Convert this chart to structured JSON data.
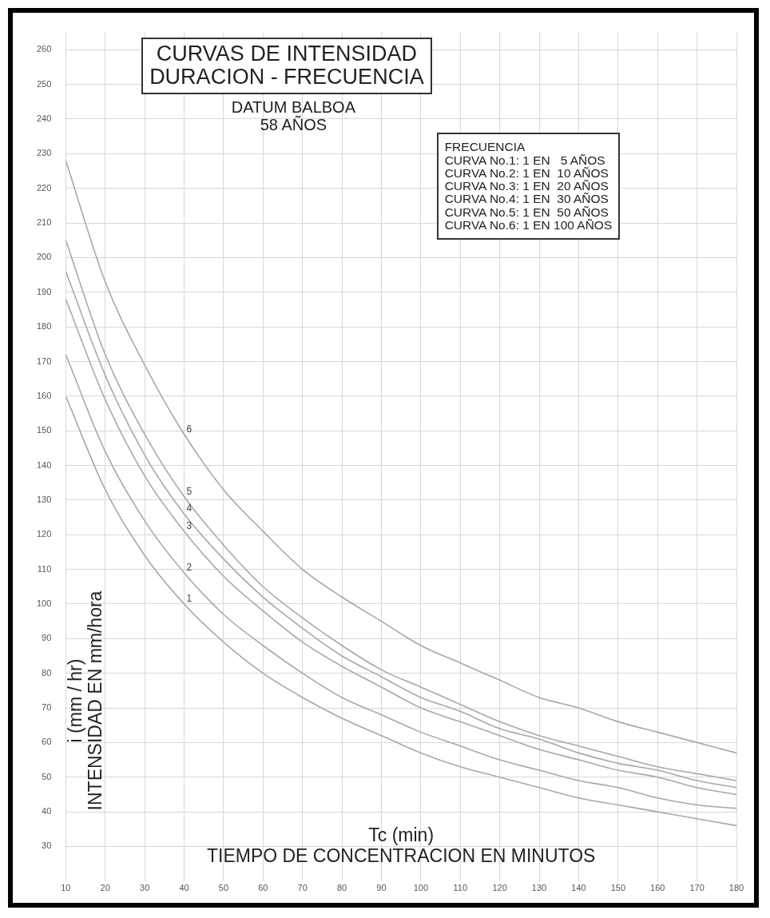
{
  "chart_data": {
    "type": "line",
    "title": "CURVAS DE INTENSIDAD\nDURACION - FRECUENCIA",
    "subtitle": "DATUM BALBOA\n58 AÑOS",
    "xlabel": "Tc (min)\nTIEMPO DE CONCENTRACION EN MINUTOS",
    "ylabel": "i (mm / hr)\nINTENSIDAD EN mm/hora",
    "x": [
      10,
      20,
      30,
      40,
      50,
      60,
      70,
      80,
      90,
      100,
      110,
      120,
      130,
      140,
      150,
      160,
      170,
      180
    ],
    "series": [
      {
        "name": "1",
        "color": "#a8a8a8",
        "values": [
          160,
          133,
          114,
          100,
          89,
          80,
          73,
          67,
          62,
          57,
          53,
          50,
          47,
          44,
          42,
          40,
          38,
          36
        ]
      },
      {
        "name": "2",
        "color": "#a8a8a8",
        "values": [
          172,
          144,
          124,
          109,
          97,
          88,
          80,
          73,
          68,
          63,
          59,
          55,
          52,
          49,
          47,
          44,
          42,
          41
        ]
      },
      {
        "name": "3",
        "color": "#a8a8a8",
        "values": [
          188,
          159,
          137,
          121,
          108,
          98,
          89,
          82,
          76,
          70,
          66,
          62,
          58,
          55,
          52,
          50,
          47,
          45
        ]
      },
      {
        "name": "4",
        "color": "#a8a8a8",
        "values": [
          196,
          166,
          143,
          126,
          113,
          102,
          93,
          85,
          79,
          73,
          69,
          64,
          61,
          57,
          54,
          52,
          49,
          47
        ]
      },
      {
        "name": "5",
        "color": "#a8a8a8",
        "values": [
          205,
          172,
          149,
          131,
          117,
          105,
          96,
          88,
          81,
          76,
          71,
          66,
          62,
          59,
          56,
          53,
          51,
          49
        ]
      },
      {
        "name": "6",
        "color": "#a8a8a8",
        "values": [
          228,
          193,
          169,
          149,
          133,
          121,
          110,
          102,
          95,
          88,
          83,
          78,
          73,
          70,
          66,
          63,
          60,
          57
        ]
      }
    ],
    "annotations": [
      "FRECUENCIA\nCURVA No.1: 1 EN   5 AÑOS\nCURVA No.2: 1 EN  10 AÑOS\nCURVA No.3: 1 EN  20 AÑOS\nCURVA No.4: 1 EN  30 AÑOS\nCURVA No.5: 1 EN  50 AÑOS\nCURVA No.6: 1 EN 100 AÑOS"
    ],
    "xlim": [
      10,
      180
    ],
    "xticks": [
      10,
      20,
      30,
      40,
      50,
      60,
      70,
      80,
      90,
      100,
      110,
      120,
      130,
      140,
      150,
      160,
      170,
      180
    ],
    "ylim": [
      20,
      265
    ],
    "yticks": [
      30,
      40,
      50,
      60,
      70,
      80,
      90,
      100,
      110,
      120,
      130,
      140,
      150,
      160,
      170,
      180,
      190,
      200,
      210,
      220,
      230,
      240,
      250,
      260
    ],
    "grid": true,
    "legend": false,
    "marker": "none",
    "line_style": "solid"
  }
}
